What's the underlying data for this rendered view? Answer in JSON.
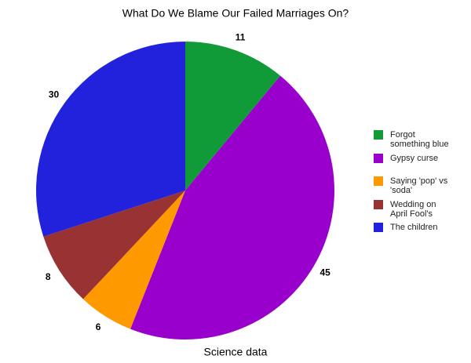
{
  "chart_data": {
    "type": "pie",
    "title": "What Do We Blame Our Failed Marriages On?",
    "xlabel": "Science data",
    "categories": [
      "Forgot something blue",
      "Gypsy curse",
      "Saying 'pop' vs 'soda'",
      "Wedding on April Fool's",
      "The children"
    ],
    "values": [
      11,
      45,
      6,
      8,
      30
    ],
    "colors": [
      "#109a38",
      "#9900cc",
      "#ff9900",
      "#993333",
      "#2222dd"
    ],
    "legend": "right"
  }
}
